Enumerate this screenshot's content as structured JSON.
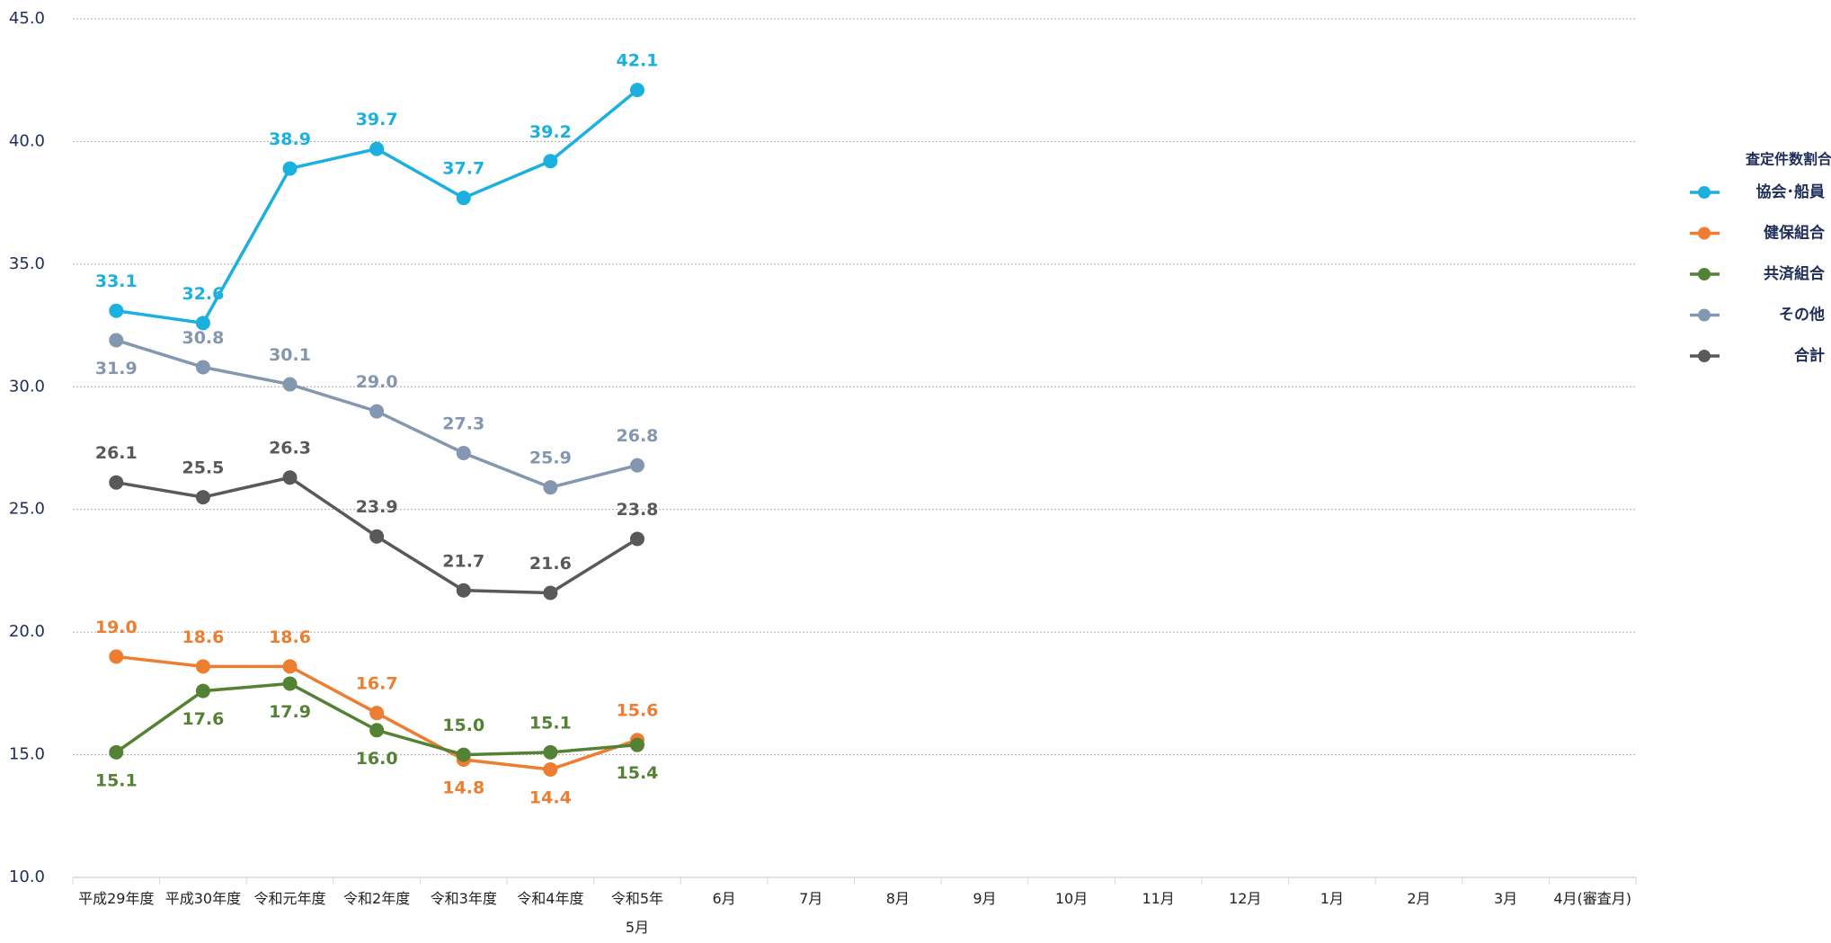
{
  "chart_data": {
    "type": "line",
    "categories": [
      "平成29年度",
      "平成30年度",
      "令和元年度",
      "令和2年度",
      "令和3年度",
      "令和4年度",
      "令和5年\n5月",
      "6月",
      "7月",
      "8月",
      "9月",
      "10月",
      "11月",
      "12月",
      "1月",
      "2月",
      "3月",
      "4月(審査月)"
    ],
    "ylim": [
      10,
      45
    ],
    "yticks": [
      {
        "value": 10,
        "label": "10.0"
      },
      {
        "value": 15,
        "label": "15.0"
      },
      {
        "value": 20,
        "label": "20.0"
      },
      {
        "value": 25,
        "label": "25.0"
      },
      {
        "value": 30,
        "label": "30.0"
      },
      {
        "value": 35,
        "label": "35.0"
      },
      {
        "value": 40,
        "label": "40.0"
      },
      {
        "value": 45,
        "label": "45.0"
      }
    ],
    "grid": true,
    "legend_title": "査定件数割合",
    "legend_position": "right",
    "series": [
      {
        "name": "協会･船員",
        "color": "#1bb0e0",
        "values": [
          33.1,
          32.6,
          38.9,
          39.7,
          37.7,
          39.2,
          42.1,
          null,
          null,
          null,
          null,
          null,
          null,
          null,
          null,
          null,
          null,
          null
        ]
      },
      {
        "name": "健保組合",
        "color": "#ed7d31",
        "values": [
          19,
          18.6,
          18.6,
          16.7,
          14.8,
          14.4,
          15.6,
          null,
          null,
          null,
          null,
          null,
          null,
          null,
          null,
          null,
          null,
          null
        ],
        "value_labels": [
          "19.0",
          "18.6",
          "18.6",
          "16.7",
          "14.8",
          "14.4",
          "15.6",
          null,
          null,
          null,
          null,
          null,
          null,
          null,
          null,
          null,
          null,
          null
        ]
      },
      {
        "name": "共済組合",
        "color": "#548235",
        "values": [
          15.1,
          17.6,
          17.9,
          16,
          15,
          15.1,
          15.4,
          null,
          null,
          null,
          null,
          null,
          null,
          null,
          null,
          null,
          null,
          null
        ],
        "value_labels": [
          "15.1",
          "17.6",
          "17.9",
          "16.0",
          "15.0",
          "15.1",
          "15.4",
          null,
          null,
          null,
          null,
          null,
          null,
          null,
          null,
          null,
          null,
          null
        ]
      },
      {
        "name": "その他",
        "color": "#8497b0",
        "values": [
          31.9,
          30.8,
          30.1,
          29,
          27.3,
          25.9,
          26.8,
          null,
          null,
          null,
          null,
          null,
          null,
          null,
          null,
          null,
          null,
          null
        ],
        "value_labels": [
          "31.9",
          "30.8",
          "30.1",
          "29.0",
          "27.3",
          "25.9",
          "26.8",
          null,
          null,
          null,
          null,
          null,
          null,
          null,
          null,
          null,
          null,
          null
        ]
      },
      {
        "name": "合計",
        "color": "#595959",
        "values": [
          26.1,
          25.5,
          26.3,
          23.9,
          21.7,
          21.6,
          23.8,
          null,
          null,
          null,
          null,
          null,
          null,
          null,
          null,
          null,
          null,
          null
        ]
      }
    ]
  }
}
